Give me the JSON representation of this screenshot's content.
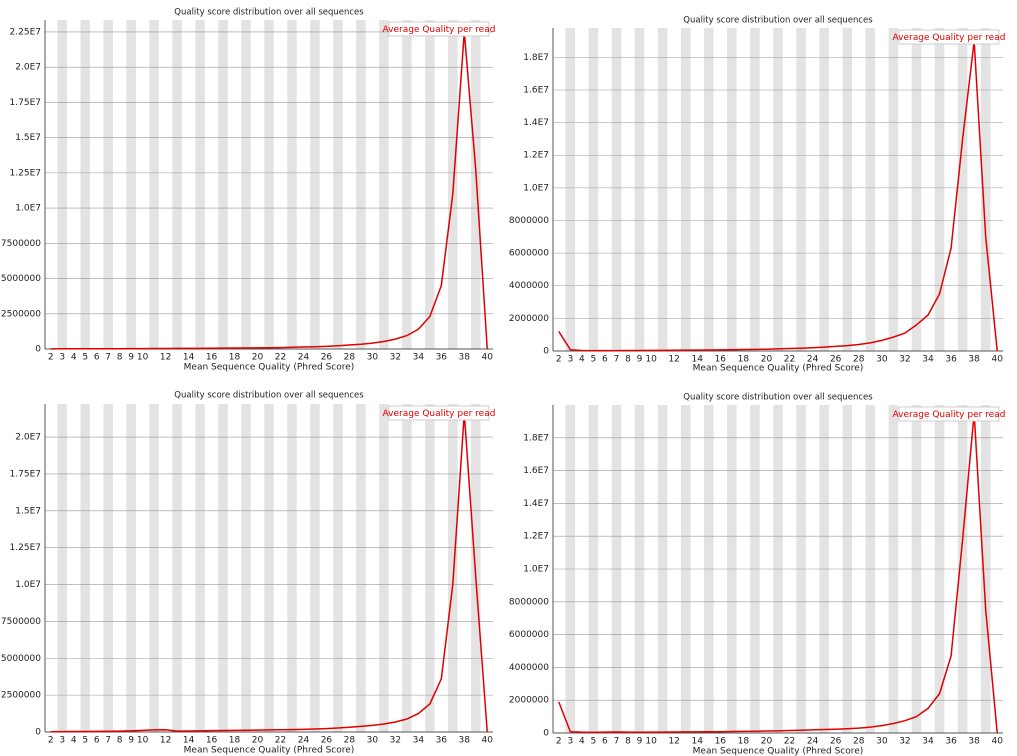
{
  "chart_data": [
    {
      "type": "line",
      "title": "Quality score distribution over all sequences",
      "x_label": "Mean Sequence Quality (Phred Score)",
      "categories": [
        2,
        3,
        4,
        5,
        6,
        7,
        8,
        9,
        10,
        null,
        12,
        null,
        14,
        null,
        16,
        null,
        18,
        null,
        20,
        null,
        22,
        null,
        24,
        null,
        26,
        null,
        28,
        null,
        30,
        null,
        32,
        null,
        34,
        null,
        36,
        null,
        38,
        null,
        40
      ],
      "series": [
        {
          "name": "Average Quality per read",
          "color": "#e00000",
          "values": [
            10000,
            15000,
            15000,
            15000,
            18000,
            20000,
            22000,
            25000,
            30000,
            35000,
            38000,
            40000,
            42000,
            45000,
            50000,
            60000,
            70000,
            75000,
            80000,
            90000,
            100000,
            120000,
            140000,
            160000,
            190000,
            230000,
            280000,
            340000,
            420000,
            530000,
            700000,
            950000,
            1400000,
            2300000,
            4500000,
            11000000,
            22500000,
            12700000,
            0
          ]
        }
      ],
      "ylim": [
        0,
        23350000
      ],
      "yticks": [
        0,
        2500000,
        5000000,
        7500000,
        {
          "value": 10000000,
          "label": "1.0E7"
        },
        {
          "value": 12500000,
          "label": "1.25E7"
        },
        {
          "value": 15000000,
          "label": "1.5E7"
        },
        {
          "value": 17500000,
          "label": "1.75E7"
        },
        {
          "value": 20000000,
          "label": "2.0E7"
        },
        {
          "value": 22500000,
          "label": "2.25E7"
        }
      ],
      "grid": true
    },
    {
      "type": "line",
      "title": "Quality score distribution over all sequences",
      "x_label": "Mean Sequence Quality (Phred Score)",
      "categories": [
        2,
        3,
        4,
        5,
        6,
        7,
        8,
        9,
        10,
        null,
        12,
        null,
        14,
        null,
        16,
        null,
        18,
        null,
        20,
        null,
        22,
        null,
        24,
        null,
        26,
        null,
        28,
        null,
        30,
        null,
        32,
        null,
        34,
        null,
        36,
        null,
        38,
        null,
        40
      ],
      "series": [
        {
          "name": "Average Quality per read",
          "color": "#e00000",
          "values": [
            1200000,
            80000,
            30000,
            25000,
            25000,
            25000,
            28000,
            30000,
            35000,
            40000,
            45000,
            50000,
            55000,
            60000,
            70000,
            80000,
            90000,
            100000,
            110000,
            130000,
            150000,
            170000,
            200000,
            240000,
            280000,
            330000,
            400000,
            500000,
            650000,
            850000,
            1100000,
            1600000,
            2200000,
            3500000,
            6300000,
            13000000,
            19000000,
            7000000,
            0
          ]
        }
      ],
      "ylim": [
        0,
        19800000
      ],
      "yticks": [
        0,
        2000000,
        4000000,
        6000000,
        8000000,
        {
          "value": 10000000,
          "label": "1.0E7"
        },
        {
          "value": 12000000,
          "label": "1.2E7"
        },
        {
          "value": 14000000,
          "label": "1.4E7"
        },
        {
          "value": 16000000,
          "label": "1.6E7"
        },
        {
          "value": 18000000,
          "label": "1.8E7"
        }
      ],
      "grid": true
    },
    {
      "type": "line",
      "title": "Quality score distribution over all sequences",
      "x_label": "Mean Sequence Quality (Phred Score)",
      "categories": [
        2,
        3,
        4,
        5,
        6,
        7,
        8,
        9,
        10,
        null,
        12,
        null,
        14,
        null,
        16,
        null,
        18,
        null,
        20,
        null,
        22,
        null,
        24,
        null,
        26,
        null,
        28,
        null,
        30,
        null,
        32,
        null,
        34,
        null,
        36,
        null,
        38,
        null,
        40
      ],
      "series": [
        {
          "name": "Average Quality per read",
          "color": "#e00000",
          "values": [
            20000,
            25000,
            30000,
            35000,
            40000,
            50000,
            60000,
            80000,
            110000,
            140000,
            150000,
            60000,
            70000,
            80000,
            90000,
            100000,
            110000,
            120000,
            130000,
            140000,
            150000,
            160000,
            180000,
            200000,
            230000,
            270000,
            320000,
            380000,
            450000,
            540000,
            680000,
            880000,
            1250000,
            1900000,
            3600000,
            10000000,
            21600000,
            10500000,
            0
          ]
        }
      ],
      "ylim": [
        0,
        22240000
      ],
      "yticks": [
        0,
        2500000,
        5000000,
        7500000,
        {
          "value": 10000000,
          "label": "1.0E7"
        },
        {
          "value": 12500000,
          "label": "1.25E7"
        },
        {
          "value": 15000000,
          "label": "1.5E7"
        },
        {
          "value": 17500000,
          "label": "1.75E7"
        },
        {
          "value": 20000000,
          "label": "2.0E7"
        }
      ],
      "grid": true
    },
    {
      "type": "line",
      "title": "Quality score distribution over all sequences",
      "x_label": "Mean Sequence Quality (Phred Score)",
      "categories": [
        2,
        3,
        4,
        5,
        6,
        7,
        8,
        9,
        10,
        null,
        12,
        null,
        14,
        null,
        16,
        null,
        18,
        null,
        20,
        null,
        22,
        null,
        24,
        null,
        26,
        null,
        28,
        null,
        30,
        null,
        32,
        null,
        34,
        null,
        36,
        null,
        38,
        null,
        40
      ],
      "series": [
        {
          "name": "Average Quality per read",
          "color": "#e00000",
          "values": [
            1900000,
            80000,
            50000,
            40000,
            50000,
            60000,
            50000,
            45000,
            50000,
            55000,
            60000,
            65000,
            70000,
            75000,
            80000,
            90000,
            100000,
            110000,
            120000,
            130000,
            150000,
            170000,
            190000,
            210000,
            230000,
            260000,
            300000,
            360000,
            450000,
            580000,
            750000,
            1000000,
            1500000,
            2400000,
            4700000,
            11800000,
            19500000,
            7500000,
            0
          ]
        }
      ],
      "ylim": [
        0,
        20000000
      ],
      "yticks": [
        0,
        2000000,
        4000000,
        6000000,
        8000000,
        {
          "value": 10000000,
          "label": "1.0E7"
        },
        {
          "value": 12000000,
          "label": "1.2E7"
        },
        {
          "value": 14000000,
          "label": "1.4E7"
        },
        {
          "value": 16000000,
          "label": "1.6E7"
        },
        {
          "value": 18000000,
          "label": "1.8E7"
        }
      ],
      "grid": true
    }
  ]
}
